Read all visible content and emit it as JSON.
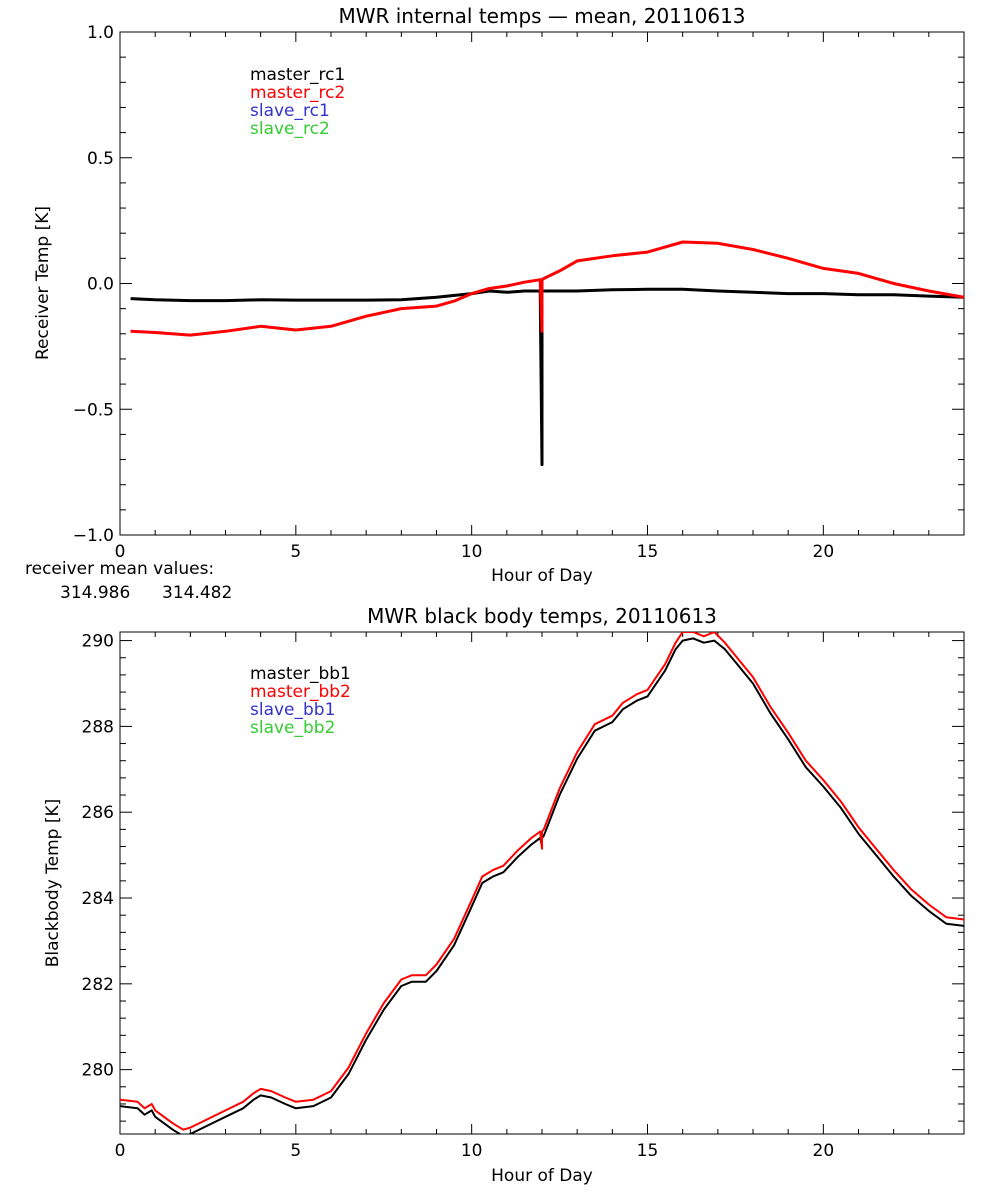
{
  "chart_data": [
    {
      "type": "line",
      "title": "MWR internal temps — mean, 20110613",
      "xlabel": "Hour of Day",
      "ylabel": "Receiver Temp [K]",
      "xlim": [
        0,
        24
      ],
      "ylim": [
        -1.0,
        1.0
      ],
      "xticks": [
        0,
        5,
        10,
        15,
        20
      ],
      "xtick_labels": [
        "0",
        "5",
        "10",
        "15",
        "20"
      ],
      "yticks": [
        -1.0,
        -0.5,
        0.0,
        0.5,
        1.0
      ],
      "ytick_labels": [
        "−1.0",
        "−0.5",
        "0.0",
        "0.5",
        "1.0"
      ],
      "legend_position": "top-left",
      "series": [
        {
          "name": "master_rc1",
          "color": "#000000",
          "x": [
            0.3,
            1,
            2,
            3,
            4,
            5,
            6,
            7,
            8,
            9,
            10,
            10.5,
            11,
            11.5,
            11.95,
            12.0,
            12.0,
            12.05,
            12.5,
            13,
            14,
            15,
            16,
            17,
            18,
            19,
            20,
            21,
            22,
            23,
            24
          ],
          "values": [
            -0.06,
            -0.065,
            -0.068,
            -0.068,
            -0.065,
            -0.066,
            -0.066,
            -0.066,
            -0.065,
            -0.055,
            -0.04,
            -0.03,
            -0.035,
            -0.03,
            -0.03,
            -0.72,
            -0.03,
            -0.03,
            -0.03,
            -0.03,
            -0.025,
            -0.023,
            -0.023,
            -0.03,
            -0.035,
            -0.04,
            -0.04,
            -0.045,
            -0.045,
            -0.05,
            -0.055
          ]
        },
        {
          "name": "master_rc2",
          "color": "#ff0000",
          "x": [
            0.3,
            1,
            2,
            3,
            4,
            5,
            6,
            7,
            8,
            9,
            9.5,
            10,
            10.5,
            11,
            11.5,
            11.95,
            12.0,
            12.0,
            12.05,
            12.5,
            13,
            14,
            15,
            16,
            17,
            18,
            19,
            20,
            21,
            22,
            23,
            24
          ],
          "values": [
            -0.19,
            -0.195,
            -0.205,
            -0.19,
            -0.17,
            -0.185,
            -0.17,
            -0.13,
            -0.1,
            -0.09,
            -0.07,
            -0.04,
            -0.02,
            -0.01,
            0.005,
            0.015,
            -0.19,
            0.015,
            0.02,
            0.05,
            0.09,
            0.11,
            0.125,
            0.165,
            0.16,
            0.135,
            0.1,
            0.06,
            0.04,
            0.0,
            -0.03,
            -0.055
          ]
        },
        {
          "name": "slave_rc1",
          "color": "#3333cc",
          "x": [],
          "values": []
        },
        {
          "name": "slave_rc2",
          "color": "#33cc33",
          "x": [],
          "values": []
        }
      ],
      "footer_label": "receiver mean values:",
      "footer_values": [
        "314.986",
        "314.482"
      ],
      "footer_colors": [
        "#000000",
        "#ff0000"
      ]
    },
    {
      "type": "line",
      "title": "MWR black body temps, 20110613",
      "xlabel": "Hour of Day",
      "ylabel": "Blackbody Temp [K]",
      "xlim": [
        0,
        24
      ],
      "ylim": [
        278.5,
        290.2
      ],
      "xticks": [
        0,
        5,
        10,
        15,
        20
      ],
      "xtick_labels": [
        "0",
        "5",
        "10",
        "15",
        "20"
      ],
      "yticks": [
        280,
        282,
        284,
        286,
        288,
        290
      ],
      "ytick_labels": [
        "280",
        "282",
        "284",
        "286",
        "288",
        "290"
      ],
      "legend_position": "top-left",
      "series": [
        {
          "name": "master_bb1",
          "color": "#000000",
          "x": [
            0,
            0.5,
            0.7,
            0.9,
            1.0,
            1.5,
            1.8,
            2.0,
            2.5,
            3.0,
            3.5,
            3.8,
            4.0,
            4.3,
            4.7,
            5.0,
            5.5,
            6.0,
            6.5,
            7.0,
            7.5,
            8.0,
            8.3,
            8.7,
            9.0,
            9.5,
            10.0,
            10.3,
            10.6,
            10.9,
            11.3,
            11.7,
            11.95,
            12.0,
            12.0,
            12.05,
            12.5,
            13.0,
            13.5,
            14.0,
            14.3,
            14.7,
            15.0,
            15.5,
            15.8,
            16.0,
            16.3,
            16.6,
            16.9,
            17.2,
            17.5,
            18.0,
            18.5,
            19.0,
            19.5,
            20.0,
            20.5,
            21.0,
            21.5,
            22.0,
            22.5,
            23.0,
            23.5,
            24.0
          ],
          "values": [
            279.15,
            279.1,
            278.95,
            279.05,
            278.9,
            278.6,
            278.45,
            278.5,
            278.7,
            278.9,
            279.1,
            279.3,
            279.4,
            279.35,
            279.2,
            279.1,
            279.15,
            279.35,
            279.9,
            280.7,
            281.4,
            281.95,
            282.05,
            282.05,
            282.3,
            282.9,
            283.8,
            284.35,
            284.5,
            284.6,
            284.95,
            285.25,
            285.4,
            285.2,
            285.4,
            285.45,
            286.4,
            287.25,
            287.9,
            288.1,
            288.4,
            288.6,
            288.7,
            289.3,
            289.8,
            290.0,
            290.05,
            289.95,
            290.0,
            289.8,
            289.5,
            289.0,
            288.3,
            287.7,
            287.05,
            286.6,
            286.1,
            285.5,
            285.0,
            284.5,
            284.05,
            283.7,
            283.4,
            283.35
          ]
        },
        {
          "name": "master_bb2",
          "color": "#ff0000",
          "x": [
            0,
            0.5,
            0.7,
            0.9,
            1.0,
            1.5,
            1.8,
            2.0,
            2.5,
            3.0,
            3.5,
            3.8,
            4.0,
            4.3,
            4.7,
            5.0,
            5.5,
            6.0,
            6.5,
            7.0,
            7.5,
            8.0,
            8.3,
            8.7,
            9.0,
            9.5,
            10.0,
            10.3,
            10.6,
            10.9,
            11.3,
            11.7,
            11.95,
            12.0,
            12.0,
            12.05,
            12.5,
            13.0,
            13.5,
            14.0,
            14.3,
            14.7,
            15.0,
            15.5,
            15.8,
            16.0,
            16.3,
            16.6,
            16.9,
            17.2,
            17.5,
            18.0,
            18.5,
            19.0,
            19.5,
            20.0,
            20.5,
            21.0,
            21.5,
            22.0,
            22.5,
            23.0,
            23.5,
            24.0
          ],
          "values": [
            279.3,
            279.25,
            279.1,
            279.2,
            279.05,
            278.75,
            278.6,
            278.65,
            278.85,
            279.05,
            279.25,
            279.45,
            279.55,
            279.5,
            279.35,
            279.25,
            279.3,
            279.5,
            280.05,
            280.85,
            281.55,
            282.1,
            282.2,
            282.2,
            282.45,
            283.05,
            283.95,
            284.5,
            284.65,
            284.75,
            285.1,
            285.4,
            285.55,
            285.15,
            285.55,
            285.6,
            286.55,
            287.4,
            288.05,
            288.25,
            288.55,
            288.75,
            288.85,
            289.45,
            289.95,
            290.2,
            290.2,
            290.1,
            290.2,
            289.95,
            289.65,
            289.15,
            288.45,
            287.85,
            287.2,
            286.75,
            286.25,
            285.65,
            285.15,
            284.65,
            284.2,
            283.85,
            283.55,
            283.5
          ]
        },
        {
          "name": "slave_bb1",
          "color": "#3333cc",
          "x": [],
          "values": []
        },
        {
          "name": "slave_bb2",
          "color": "#33cc33",
          "x": [],
          "values": []
        }
      ]
    }
  ]
}
